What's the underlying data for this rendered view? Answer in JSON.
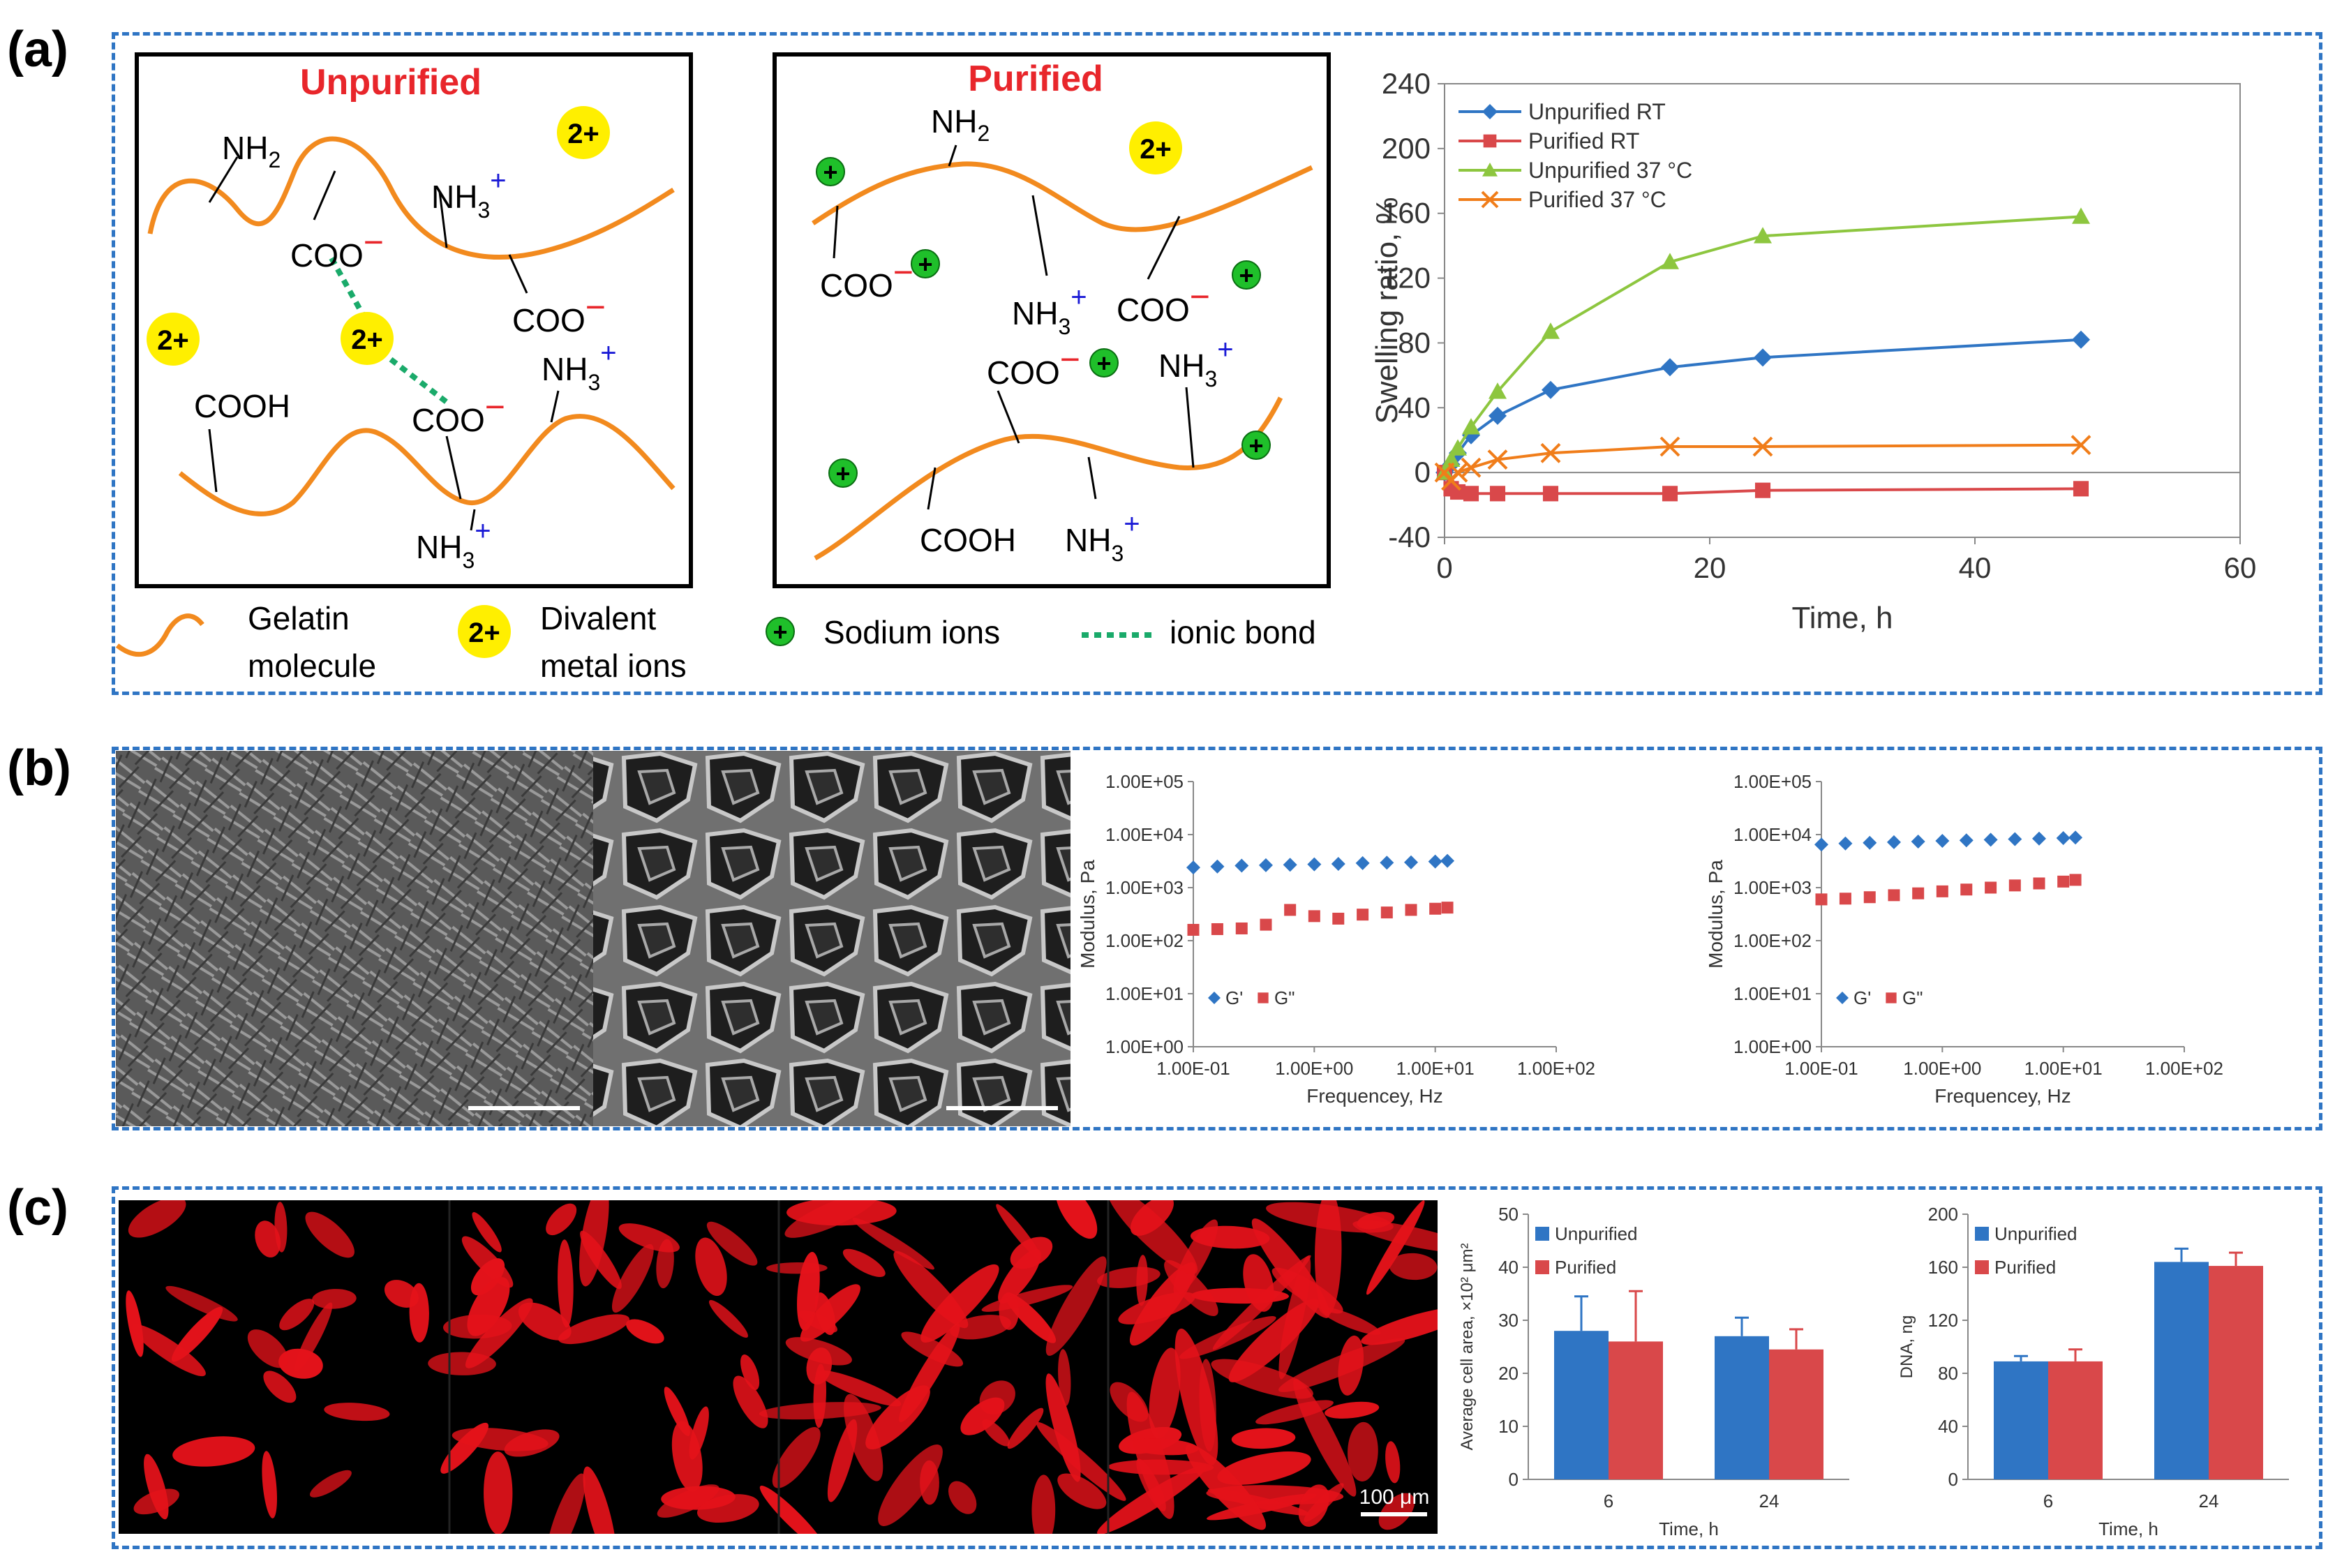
{
  "figure": {
    "panel_a": {
      "letter": "(a)",
      "unpurified_title": "Unpurified",
      "purified_title": "Purified",
      "labels": {
        "nh2": "NH",
        "nh2_sub": "2",
        "nh3": "NH",
        "nh3_sub": "3",
        "plus": "+",
        "coo": "COO",
        "minus": "−",
        "cooh": "COOH",
        "ion2": "2+",
        "na": "+"
      },
      "legend": {
        "gelatin_line1": "Gelatin",
        "gelatin_line2": "molecule",
        "divalent_line1": "Divalent",
        "divalent_line2": "metal ions",
        "sodium": "Sodium ions",
        "ionic": "ionic bond"
      }
    },
    "panel_b": {
      "letter": "(b)",
      "scale_bar_text": ""
    },
    "panel_c": {
      "letter": "(c)",
      "scale_bar_text": "100 μm"
    },
    "colors": {
      "box_border": "#2f75c4",
      "gelatin": "#f28a1e",
      "ion_yellow": "#ffef00",
      "sodium_green": "#1fbf2a",
      "ionic_bond": "#1aaa6a",
      "red_label": "#e8262b",
      "blue_label": "#1a1ad6",
      "blue_series": "#2f75c4",
      "red_series": "#d9484a",
      "green_series": "#8dc63f",
      "orange_series": "#f07d1a"
    }
  },
  "chart_data": [
    {
      "id": "swelling",
      "type": "line",
      "xlabel": "Time, h",
      "ylabel": "Swelling ratio,  %",
      "xlim": [
        0,
        60
      ],
      "ylim": [
        -40,
        240
      ],
      "xticks": [
        "0",
        "20",
        "40",
        "60"
      ],
      "yticks": [
        "240",
        "200",
        "160",
        "120",
        "80",
        "40",
        "0",
        "-40"
      ],
      "legend_position": "top-left",
      "series": [
        {
          "name": "Unpurified RT",
          "color": "#2f75c4",
          "marker": "diamond",
          "x": [
            0,
            0.5,
            1,
            2,
            4,
            8,
            17,
            24,
            48
          ],
          "y": [
            0,
            5,
            12,
            23,
            35,
            51,
            65,
            71,
            82
          ]
        },
        {
          "name": "Purified RT",
          "color": "#d9484a",
          "marker": "square",
          "x": [
            0,
            0.5,
            1,
            2,
            4,
            8,
            17,
            24,
            48
          ],
          "y": [
            0,
            -10,
            -12,
            -13,
            -13,
            -13,
            -13,
            -11,
            -10
          ]
        },
        {
          "name": "Unpurified 37 °C",
          "color": "#8dc63f",
          "marker": "triangle",
          "x": [
            0,
            0.5,
            1,
            2,
            4,
            8,
            17,
            24,
            48
          ],
          "y": [
            0,
            8,
            15,
            28,
            50,
            87,
            130,
            146,
            158
          ]
        },
        {
          "name": "Purified 37 °C",
          "color": "#f07d1a",
          "marker": "x",
          "x": [
            0,
            0.5,
            1,
            2,
            4,
            8,
            17,
            24,
            48
          ],
          "y": [
            0,
            -5,
            0,
            3,
            8,
            12,
            16,
            16,
            17
          ]
        }
      ]
    },
    {
      "id": "rheo1",
      "type": "scatter",
      "xlabel": "Frequencey, Hz",
      "ylabel": "Modulus, Pa",
      "xscale": "log",
      "yscale": "log",
      "xlim": [
        0.1,
        100
      ],
      "ylim": [
        1,
        100000
      ],
      "xticks": [
        "1.00E-01",
        "1.00E+00",
        "1.00E+01",
        "1.00E+02"
      ],
      "yticks": [
        "1.00E+05",
        "1.00E+04",
        "1.00E+03",
        "1.00E+02",
        "1.00E+01",
        "1.00E+00"
      ],
      "legend_position": "bottom-left",
      "series": [
        {
          "name": "G'",
          "color": "#2f75c4",
          "marker": "diamond",
          "x": [
            0.1,
            0.158,
            0.251,
            0.398,
            0.631,
            1.0,
            1.58,
            2.51,
            3.98,
            6.31,
            10.0,
            12.6
          ],
          "y": [
            2400,
            2500,
            2600,
            2650,
            2700,
            2750,
            2800,
            2900,
            2950,
            3000,
            3100,
            3200
          ]
        },
        {
          "name": "G\"",
          "color": "#d9484a",
          "marker": "square",
          "x": [
            0.1,
            0.158,
            0.251,
            0.398,
            0.631,
            1.0,
            1.58,
            2.51,
            3.98,
            6.31,
            10.0,
            12.6
          ],
          "y": [
            160,
            165,
            170,
            200,
            380,
            290,
            260,
            310,
            340,
            380,
            400,
            420
          ]
        }
      ]
    },
    {
      "id": "rheo2",
      "type": "scatter",
      "xlabel": "Frequencey, Hz",
      "ylabel": "Modulus, Pa",
      "xscale": "log",
      "yscale": "log",
      "xlim": [
        0.1,
        100
      ],
      "ylim": [
        1,
        100000
      ],
      "xticks": [
        "1.00E-01",
        "1.00E+00",
        "1.00E+01",
        "1.00E+02"
      ],
      "yticks": [
        "1.00E+05",
        "1.00E+04",
        "1.00E+03",
        "1.00E+02",
        "1.00E+01",
        "1.00E+00"
      ],
      "legend_position": "bottom-left",
      "series": [
        {
          "name": "G'",
          "color": "#2f75c4",
          "marker": "diamond",
          "x": [
            0.1,
            0.158,
            0.251,
            0.398,
            0.631,
            1.0,
            1.58,
            2.51,
            3.98,
            6.31,
            10.0,
            12.6
          ],
          "y": [
            6500,
            6800,
            7000,
            7200,
            7400,
            7600,
            7800,
            8000,
            8200,
            8400,
            8600,
            8800
          ]
        },
        {
          "name": "G\"",
          "color": "#d9484a",
          "marker": "square",
          "x": [
            0.1,
            0.158,
            0.251,
            0.398,
            0.631,
            1.0,
            1.58,
            2.51,
            3.98,
            6.31,
            10.0,
            12.6
          ],
          "y": [
            600,
            620,
            660,
            720,
            780,
            850,
            920,
            1000,
            1100,
            1200,
            1300,
            1400
          ]
        }
      ]
    },
    {
      "id": "cellarea",
      "type": "bar",
      "xlabel": "Time, h",
      "ylabel": "Average cell area, ×10² μm²",
      "ylim": [
        0,
        50
      ],
      "yticks": [
        "50",
        "40",
        "30",
        "20",
        "10",
        "0"
      ],
      "categories": [
        "6",
        "24"
      ],
      "legend_position": "top-left",
      "series": [
        {
          "name": "Unpurified",
          "color": "#2f75c4",
          "values": [
            28,
            27
          ],
          "errors": [
            6.5,
            3.5
          ]
        },
        {
          "name": "Purified",
          "color": "#d9484a",
          "values": [
            26,
            24.5
          ],
          "errors": [
            9.5,
            3.8
          ]
        }
      ]
    },
    {
      "id": "dna",
      "type": "bar",
      "xlabel": "Time, h",
      "ylabel": "DNA, ng",
      "ylim": [
        0,
        200
      ],
      "yticks": [
        "200",
        "160",
        "120",
        "80",
        "40",
        "0"
      ],
      "categories": [
        "6",
        "24"
      ],
      "legend_position": "top-left",
      "series": [
        {
          "name": "Unpurified",
          "color": "#2f75c4",
          "values": [
            89,
            164
          ],
          "errors": [
            4,
            10
          ]
        },
        {
          "name": "Purified",
          "color": "#d9484a",
          "values": [
            89,
            161
          ],
          "errors": [
            9,
            10
          ]
        }
      ]
    }
  ]
}
